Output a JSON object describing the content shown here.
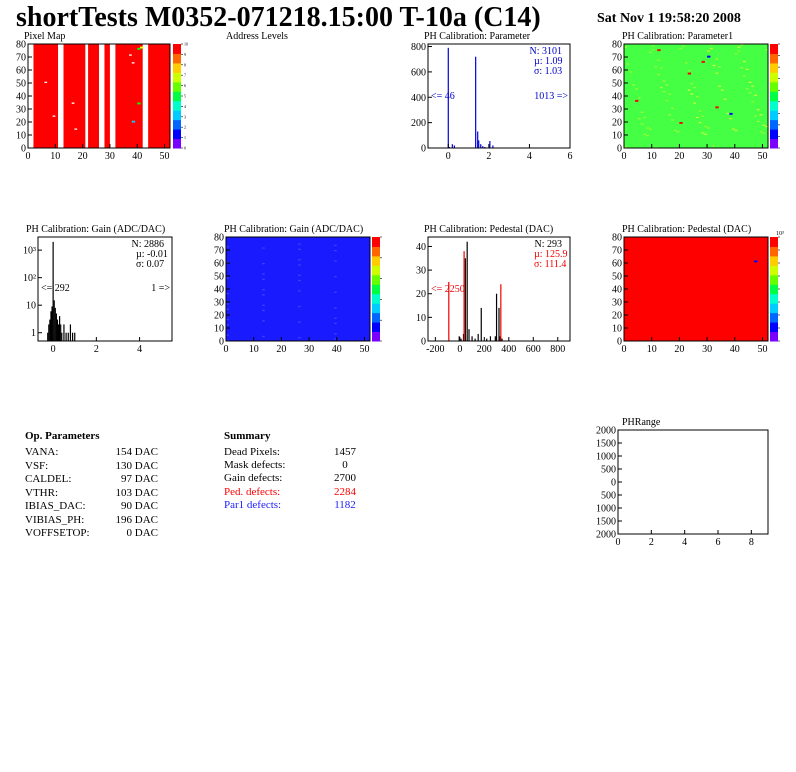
{
  "header": {
    "title": "shortTests M0352-071218.15:00 T-10a (C14)",
    "date": "Sat Nov  1 19:58:20 2008"
  },
  "colors": {
    "red": "#ff0000",
    "blue": "#1a1aff",
    "green": "#44ff44",
    "stat_blue": "#0000cc",
    "stat_red": "#ee0000",
    "hist_blue": "#0000dd"
  },
  "chart_data": [
    {
      "id": "pixel-map",
      "type": "heatmap",
      "title": "Pixel Map",
      "xlim": [
        0,
        52
      ],
      "ylim": [
        0,
        80
      ],
      "xticks": [
        "0",
        "10",
        "20",
        "30",
        "40",
        "50"
      ],
      "yticks": [
        "0",
        "10",
        "20",
        "30",
        "40",
        "50",
        "60",
        "70",
        "80"
      ],
      "colorbar_ticks": [
        "0",
        "1",
        "2",
        "3",
        "4",
        "5",
        "6",
        "7",
        "8",
        "9",
        "10"
      ],
      "fill_color": "red",
      "white_columns": [
        [
          0,
          2
        ],
        [
          11,
          13
        ],
        [
          21,
          22
        ],
        [
          26,
          28
        ],
        [
          30,
          32
        ],
        [
          42,
          44
        ]
      ],
      "isolated_white_cells": [
        [
          37,
          71
        ],
        [
          38,
          65
        ],
        [
          16,
          34
        ],
        [
          17,
          14
        ],
        [
          6,
          50
        ],
        [
          9,
          24
        ]
      ],
      "isolated_colored_cells": [
        {
          "x": 41,
          "y": 77,
          "c": "#ffff00"
        },
        {
          "x": 40,
          "y": 76,
          "c": "#00ff00"
        },
        {
          "x": 38,
          "y": 20,
          "c": "#00ccff"
        },
        {
          "x": 40,
          "y": 34,
          "c": "#00ff00"
        }
      ]
    },
    {
      "id": "address-levels",
      "type": "bar",
      "title": "Address Levels"
    },
    {
      "id": "ph-parameter",
      "type": "bar",
      "title": "PH Calibration: Parameter",
      "xlim": [
        -1,
        6
      ],
      "ylim": [
        0,
        820
      ],
      "xticks": [
        "0",
        "2",
        "4",
        "6"
      ],
      "yticks": [
        "0",
        "200",
        "400",
        "600",
        "800"
      ],
      "stats": {
        "entries": "N: 3101",
        "mean": "µ: 1.09",
        "rms": "σ: 1.03"
      },
      "underflow_label": "<= 46",
      "overflow_label": "1013 =>",
      "x": [
        0.0,
        0.05,
        0.2,
        0.3,
        1.35,
        1.45,
        1.5,
        1.6,
        1.7,
        1.8,
        2.05,
        2.2,
        3.5,
        5.0
      ],
      "values": [
        790,
        8,
        30,
        20,
        720,
        130,
        60,
        30,
        15,
        8,
        55,
        20,
        3,
        3
      ]
    },
    {
      "id": "ph-parameter1",
      "type": "heatmap",
      "title": "PH Calibration: Parameter1",
      "xlim": [
        0,
        52
      ],
      "ylim": [
        0,
        80
      ],
      "xticks": [
        "0",
        "10",
        "20",
        "30",
        "40",
        "50"
      ],
      "yticks": [
        "0",
        "10",
        "20",
        "30",
        "40",
        "50",
        "60",
        "70",
        "80"
      ],
      "colorbar_ticks": [
        "",
        "",
        "",
        "",
        "",
        "",
        "",
        "",
        "",
        ""
      ],
      "fill_color": "green",
      "hot_cells": [
        {
          "x": 12,
          "y": 75,
          "c": "#ff0000"
        },
        {
          "x": 30,
          "y": 70,
          "c": "#0000ff"
        },
        {
          "x": 4,
          "y": 36,
          "c": "#ff0000"
        },
        {
          "x": 28,
          "y": 66,
          "c": "#ff0000"
        },
        {
          "x": 33,
          "y": 31,
          "c": "#ff0000"
        },
        {
          "x": 38,
          "y": 26,
          "c": "#0000ff"
        },
        {
          "x": 23,
          "y": 57,
          "c": "#ff0000"
        },
        {
          "x": 20,
          "y": 19,
          "c": "#ff0000"
        }
      ]
    },
    {
      "id": "gain-1d",
      "type": "bar",
      "title": "PH Calibration: Gain (ADC/DAC)",
      "log_y": true,
      "xlim": [
        -0.7,
        5.5
      ],
      "ylim": [
        0.5,
        3000
      ],
      "xticks": [
        "0",
        "2",
        "4"
      ],
      "yticks": [
        "1",
        "10",
        "10²",
        "10³"
      ],
      "stats": {
        "entries": "N: 2886",
        "mean": "µ: -0.01",
        "rms": "σ: 0.07"
      },
      "underflow_label": "<= 292",
      "overflow_label": "1 =>",
      "x": [
        -0.25,
        -0.2,
        -0.15,
        -0.1,
        -0.05,
        0.0,
        0.05,
        0.1,
        0.15,
        0.2,
        0.25,
        0.3,
        0.35,
        0.4,
        0.5,
        0.6,
        0.7,
        0.8,
        0.9,
        1.0
      ],
      "values": [
        1,
        2,
        3,
        6,
        9,
        2000,
        15,
        8,
        5,
        3,
        2,
        4,
        2,
        1,
        2,
        1,
        1,
        2,
        1,
        1
      ]
    },
    {
      "id": "gain-2d",
      "type": "heatmap",
      "title": "PH Calibration: Gain (ADC/DAC)",
      "xlim": [
        0,
        52
      ],
      "ylim": [
        0,
        80
      ],
      "xticks": [
        "0",
        "10",
        "20",
        "30",
        "40",
        "50"
      ],
      "yticks": [
        "0",
        "10",
        "20",
        "30",
        "40",
        "50",
        "60",
        "70",
        "80"
      ],
      "colorbar_ticks": [
        "",
        "",
        "",
        "",
        "",
        ""
      ],
      "fill_color": "blue"
    },
    {
      "id": "pedestal-1d",
      "type": "bar",
      "title": "PH Calibration: Pedestal (DAC)",
      "xlim": [
        -260,
        900
      ],
      "ylim": [
        0,
        44
      ],
      "xticks": [
        "-200",
        "0",
        "200",
        "400",
        "600",
        "800"
      ],
      "yticks": [
        "0",
        "10",
        "20",
        "30",
        "40"
      ],
      "stats": {
        "entries": "N:  293",
        "mean": "µ: 125.9",
        "rms": "σ: 111.4"
      },
      "underflow_label": "<= 2250",
      "series": [
        {
          "name": "black",
          "x": [
            -5,
            10,
            30,
            45,
            60,
            75,
            100,
            125,
            150,
            175,
            220,
            250,
            290,
            300,
            320,
            330,
            345
          ],
          "values": [
            2,
            1,
            3,
            35,
            42,
            5,
            2,
            1,
            3,
            14,
            1,
            2,
            2,
            20,
            14,
            2,
            1
          ]
        },
        {
          "name": "red",
          "x": [
            -90,
            35,
            335
          ],
          "values": [
            25,
            38,
            24
          ]
        }
      ]
    },
    {
      "id": "pedestal-2d",
      "type": "heatmap",
      "title": "PH Calibration: Pedestal (DAC)",
      "xlim": [
        0,
        52
      ],
      "ylim": [
        0,
        80
      ],
      "xticks": [
        "0",
        "10",
        "20",
        "30",
        "40",
        "50"
      ],
      "yticks": [
        "0",
        "10",
        "20",
        "30",
        "40",
        "50",
        "60",
        "70",
        "80"
      ],
      "colorbar_exp": "10³",
      "colorbar_ticks": [
        "",
        "",
        "",
        "",
        "",
        "",
        "",
        "",
        ""
      ],
      "fill_color": "red",
      "hot_cells": [
        {
          "x": 47,
          "y": 61,
          "c": "#0000ff"
        }
      ]
    },
    {
      "id": "ph-range",
      "type": "line",
      "title": "PHRange",
      "xlim": [
        0,
        9
      ],
      "ylim": [
        -2000,
        2000
      ],
      "xticks": [
        "0",
        "2",
        "4",
        "6",
        "8"
      ],
      "yticks": [
        "2000",
        "1500",
        "1000",
        "500",
        "0",
        "500",
        "1000",
        "1500",
        "2000"
      ]
    }
  ],
  "op_parameters": {
    "title": "Op. Parameters",
    "rows": [
      {
        "name": "VANA:",
        "value": "154 DAC"
      },
      {
        "name": "VSF:",
        "value": "130 DAC"
      },
      {
        "name": "CALDEL:",
        "value": "97 DAC"
      },
      {
        "name": "VTHR:",
        "value": "103 DAC"
      },
      {
        "name": "IBIAS_DAC:",
        "value": "90 DAC"
      },
      {
        "name": "VIBIAS_PH:",
        "value": "196 DAC"
      },
      {
        "name": "VOFFSETOP:",
        "value": "0 DAC"
      }
    ]
  },
  "summary": {
    "title": "Summary",
    "rows": [
      {
        "name": "Dead Pixels:",
        "value": "1457",
        "color": ""
      },
      {
        "name": "Mask defects:",
        "value": "0",
        "color": ""
      },
      {
        "name": "Gain defects:",
        "value": "2700",
        "color": ""
      },
      {
        "name": "Ped. defects:",
        "value": "2284",
        "color": "red"
      },
      {
        "name": "Par1 defects:",
        "value": "1182",
        "color": "blue"
      }
    ]
  }
}
